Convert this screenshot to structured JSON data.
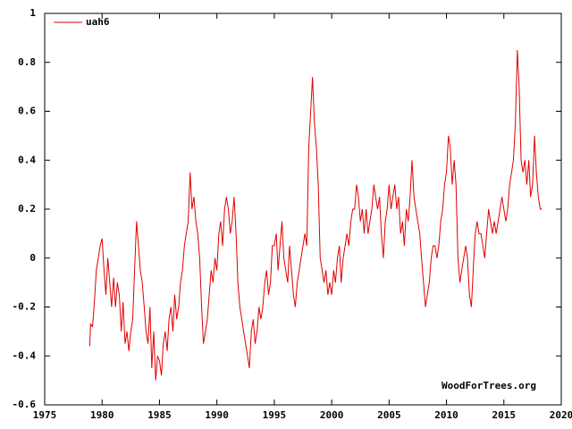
{
  "chart_data": {
    "type": "line",
    "annotation": "WoodForTrees.org",
    "legend": "top-left",
    "xlim": [
      1975,
      2020
    ],
    "xticks": [
      1975,
      1980,
      1985,
      1990,
      1995,
      2000,
      2005,
      2010,
      2015,
      2020
    ],
    "ylim": [
      -0.6,
      1
    ],
    "yticks": [
      -0.6,
      -0.4,
      -0.2,
      0,
      0.2,
      0.4,
      0.6,
      0.8,
      1
    ],
    "grid": false,
    "x": [
      1978.92,
      1979.0,
      1979.17,
      1979.33,
      1979.5,
      1979.67,
      1979.83,
      1980.0,
      1980.17,
      1980.33,
      1980.5,
      1980.67,
      1980.83,
      1981.0,
      1981.17,
      1981.33,
      1981.5,
      1981.67,
      1981.83,
      1982.0,
      1982.17,
      1982.33,
      1982.5,
      1982.67,
      1982.83,
      1983.0,
      1983.17,
      1983.33,
      1983.5,
      1983.67,
      1983.83,
      1984.0,
      1984.17,
      1984.33,
      1984.5,
      1984.67,
      1984.83,
      1985.0,
      1985.17,
      1985.33,
      1985.5,
      1985.67,
      1985.83,
      1986.0,
      1986.17,
      1986.33,
      1986.5,
      1986.67,
      1986.83,
      1987.0,
      1987.17,
      1987.33,
      1987.5,
      1987.67,
      1987.83,
      1988.0,
      1988.17,
      1988.33,
      1988.5,
      1988.67,
      1988.83,
      1989.0,
      1989.17,
      1989.33,
      1989.5,
      1989.67,
      1989.83,
      1990.0,
      1990.17,
      1990.33,
      1990.5,
      1990.67,
      1990.83,
      1991.0,
      1991.17,
      1991.33,
      1991.5,
      1991.67,
      1991.83,
      1992.0,
      1992.17,
      1992.33,
      1992.5,
      1992.67,
      1992.83,
      1993.0,
      1993.17,
      1993.33,
      1993.5,
      1993.67,
      1993.83,
      1994.0,
      1994.17,
      1994.33,
      1994.5,
      1994.67,
      1994.83,
      1995.0,
      1995.17,
      1995.33,
      1995.5,
      1995.67,
      1995.83,
      1996.0,
      1996.17,
      1996.33,
      1996.5,
      1996.67,
      1996.83,
      1997.0,
      1997.17,
      1997.33,
      1997.5,
      1997.67,
      1997.83,
      1998.0,
      1998.17,
      1998.33,
      1998.5,
      1998.67,
      1998.83,
      1999.0,
      1999.17,
      1999.33,
      1999.5,
      1999.67,
      1999.83,
      2000.0,
      2000.17,
      2000.33,
      2000.5,
      2000.67,
      2000.83,
      2001.0,
      2001.17,
      2001.33,
      2001.5,
      2001.67,
      2001.83,
      2002.0,
      2002.17,
      2002.33,
      2002.5,
      2002.67,
      2002.83,
      2003.0,
      2003.17,
      2003.33,
      2003.5,
      2003.67,
      2003.83,
      2004.0,
      2004.17,
      2004.33,
      2004.5,
      2004.67,
      2004.83,
      2005.0,
      2005.17,
      2005.33,
      2005.5,
      2005.67,
      2005.83,
      2006.0,
      2006.17,
      2006.33,
      2006.5,
      2006.67,
      2006.83,
      2007.0,
      2007.17,
      2007.33,
      2007.5,
      2007.67,
      2007.83,
      2008.0,
      2008.17,
      2008.33,
      2008.5,
      2008.67,
      2008.83,
      2009.0,
      2009.17,
      2009.33,
      2009.5,
      2009.67,
      2009.83,
      2010.0,
      2010.17,
      2010.33,
      2010.5,
      2010.67,
      2010.83,
      2011.0,
      2011.17,
      2011.33,
      2011.5,
      2011.67,
      2011.83,
      2012.0,
      2012.17,
      2012.33,
      2012.5,
      2012.67,
      2012.83,
      2013.0,
      2013.17,
      2013.33,
      2013.5,
      2013.67,
      2013.83,
      2014.0,
      2014.17,
      2014.33,
      2014.5,
      2014.67,
      2014.83,
      2015.0,
      2015.17,
      2015.33,
      2015.5,
      2015.67,
      2015.83,
      2016.0,
      2016.17,
      2016.33,
      2016.5,
      2016.67,
      2016.83,
      2017.0,
      2017.17,
      2017.33,
      2017.5,
      2017.67,
      2017.83,
      2018.0,
      2018.17,
      2018.33
    ],
    "series": [
      {
        "name": "uah6",
        "color": "#e00000",
        "values": [
          -0.36,
          -0.27,
          -0.28,
          -0.18,
          -0.05,
          0.0,
          0.05,
          0.08,
          -0.05,
          -0.15,
          0.0,
          -0.1,
          -0.2,
          -0.08,
          -0.2,
          -0.1,
          -0.15,
          -0.3,
          -0.18,
          -0.35,
          -0.3,
          -0.38,
          -0.3,
          -0.25,
          -0.05,
          0.15,
          0.05,
          -0.05,
          -0.1,
          -0.2,
          -0.3,
          -0.35,
          -0.2,
          -0.45,
          -0.3,
          -0.5,
          -0.4,
          -0.42,
          -0.48,
          -0.35,
          -0.3,
          -0.38,
          -0.25,
          -0.2,
          -0.3,
          -0.15,
          -0.25,
          -0.2,
          -0.1,
          -0.05,
          0.05,
          0.1,
          0.15,
          0.35,
          0.2,
          0.25,
          0.15,
          0.1,
          0.0,
          -0.2,
          -0.35,
          -0.3,
          -0.25,
          -0.15,
          -0.05,
          -0.1,
          0.0,
          -0.05,
          0.1,
          0.15,
          0.05,
          0.2,
          0.25,
          0.2,
          0.1,
          0.15,
          0.25,
          0.1,
          -0.1,
          -0.2,
          -0.25,
          -0.3,
          -0.35,
          -0.4,
          -0.45,
          -0.3,
          -0.25,
          -0.35,
          -0.3,
          -0.2,
          -0.25,
          -0.2,
          -0.1,
          -0.05,
          -0.15,
          -0.1,
          0.05,
          0.05,
          0.1,
          -0.05,
          0.05,
          0.15,
          0.0,
          -0.05,
          -0.1,
          0.05,
          -0.05,
          -0.15,
          -0.2,
          -0.1,
          -0.05,
          0.0,
          0.05,
          0.1,
          0.05,
          0.45,
          0.6,
          0.74,
          0.55,
          0.45,
          0.3,
          0.0,
          -0.05,
          -0.1,
          -0.05,
          -0.15,
          -0.1,
          -0.15,
          -0.05,
          -0.1,
          0.0,
          0.05,
          -0.1,
          0.0,
          0.05,
          0.1,
          0.05,
          0.15,
          0.2,
          0.2,
          0.3,
          0.25,
          0.15,
          0.2,
          0.1,
          0.2,
          0.1,
          0.15,
          0.2,
          0.3,
          0.25,
          0.2,
          0.25,
          0.1,
          0.0,
          0.15,
          0.2,
          0.3,
          0.2,
          0.25,
          0.3,
          0.2,
          0.25,
          0.1,
          0.15,
          0.05,
          0.2,
          0.15,
          0.25,
          0.4,
          0.25,
          0.2,
          0.15,
          0.1,
          0.0,
          -0.1,
          -0.2,
          -0.15,
          -0.1,
          0.0,
          0.05,
          0.05,
          0.0,
          0.05,
          0.15,
          0.2,
          0.3,
          0.35,
          0.5,
          0.45,
          0.3,
          0.4,
          0.3,
          0.0,
          -0.1,
          -0.05,
          0.0,
          0.05,
          0.0,
          -0.15,
          -0.2,
          -0.05,
          0.1,
          0.15,
          0.1,
          0.1,
          0.05,
          0.0,
          0.1,
          0.2,
          0.15,
          0.1,
          0.15,
          0.1,
          0.15,
          0.2,
          0.25,
          0.2,
          0.15,
          0.2,
          0.3,
          0.35,
          0.4,
          0.55,
          0.85,
          0.7,
          0.4,
          0.35,
          0.4,
          0.3,
          0.4,
          0.25,
          0.3,
          0.5,
          0.35,
          0.25,
          0.2,
          0.2
        ]
      }
    ]
  }
}
